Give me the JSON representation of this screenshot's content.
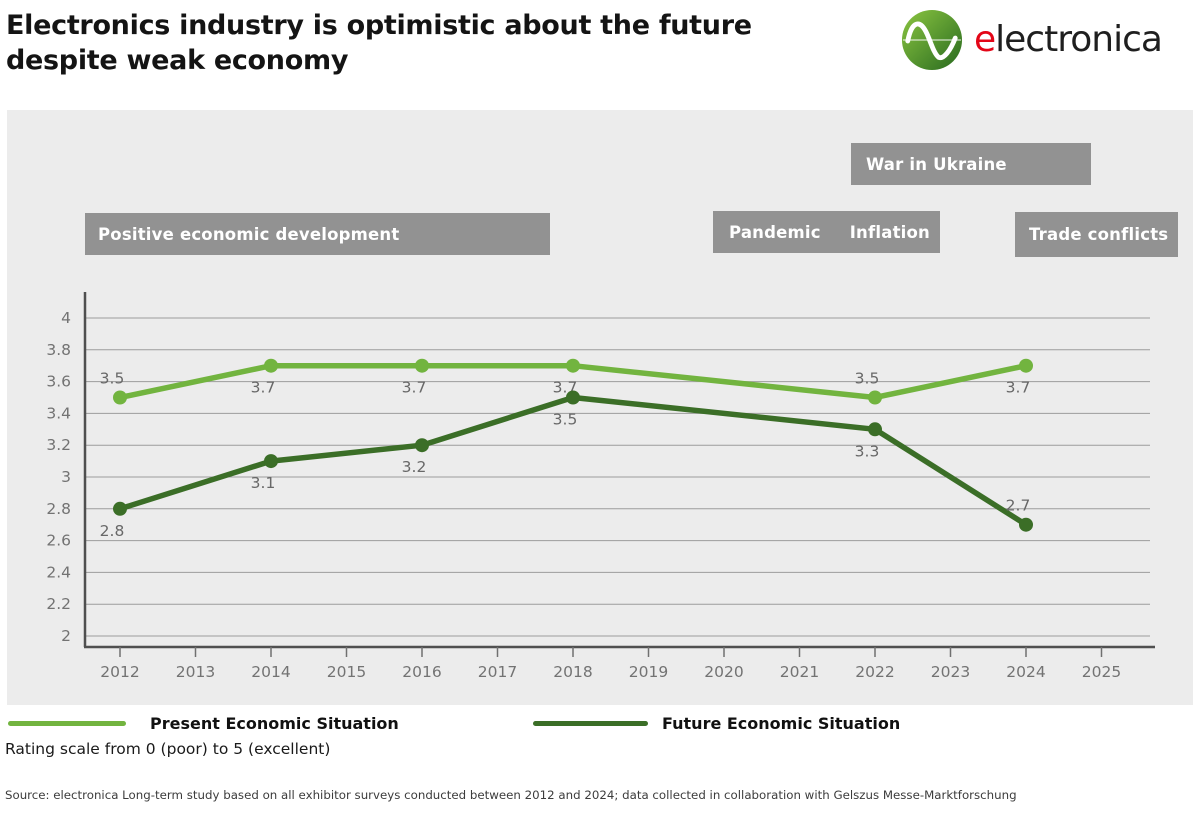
{
  "header": {
    "title_line1": "Electronics industry is optimistic about the future",
    "title_line2": "despite weak economy",
    "logo": {
      "first_letter": "e",
      "rest": "lectronica"
    }
  },
  "annotations": {
    "positive": "Positive economic development",
    "war": "War in Ukraine",
    "pandemic": "Pandemic",
    "inflation": "Inflation",
    "trade": "Trade conflicts"
  },
  "chart_data": {
    "type": "line",
    "x_ticks": [
      2012,
      2013,
      2014,
      2015,
      2016,
      2017,
      2018,
      2019,
      2020,
      2021,
      2022,
      2023,
      2024,
      2025
    ],
    "ylim": [
      2,
      4
    ],
    "y_ticks": [
      "4",
      "3.8",
      "3.6",
      "3.4",
      "3.2",
      "3",
      "2.8",
      "2.6",
      "2.4",
      "2.2",
      "2"
    ],
    "grid": true,
    "legend_position": "bottom",
    "series": [
      {
        "name": "Present Economic Situation",
        "color": "#72b43f",
        "points": [
          {
            "x": 2012,
            "y": 3.5,
            "label": "3.5",
            "label_pos": "above"
          },
          {
            "x": 2014,
            "y": 3.7,
            "label": "3.7",
            "label_pos": "below"
          },
          {
            "x": 2016,
            "y": 3.7,
            "label": "3.7",
            "label_pos": "below"
          },
          {
            "x": 2018,
            "y": 3.7,
            "label": "3.7",
            "label_pos": "below"
          },
          {
            "x": 2022,
            "y": 3.5,
            "label": "3.5",
            "label_pos": "above"
          },
          {
            "x": 2024,
            "y": 3.7,
            "label": "3.7",
            "label_pos": "below"
          }
        ]
      },
      {
        "name": "Future Economic Situation",
        "color": "#3b6e27",
        "points": [
          {
            "x": 2012,
            "y": 2.8,
            "label": "2.8",
            "label_pos": "below"
          },
          {
            "x": 2014,
            "y": 3.1,
            "label": "3.1",
            "label_pos": "below"
          },
          {
            "x": 2016,
            "y": 3.2,
            "label": "3.2",
            "label_pos": "below"
          },
          {
            "x": 2018,
            "y": 3.5,
            "label": "3.5",
            "label_pos": "below"
          },
          {
            "x": 2022,
            "y": 3.3,
            "label": "3.3",
            "label_pos": "below"
          },
          {
            "x": 2024,
            "y": 2.7,
            "label": "2.7",
            "label_pos": "above"
          }
        ]
      }
    ]
  },
  "legend": {
    "present": "Present Economic Situation",
    "future": "Future Economic Situation",
    "rating_note": "Rating scale from 0 (poor) to 5 (excellent)"
  },
  "footer": {
    "source": "Source: electronica Long-term study based on all exhibitor surveys conducted between 2012 and 2024; data collected in collaboration with Gelszus Messe-Marktforschung"
  },
  "colors": {
    "present": "#72b43f",
    "future": "#3b6e27",
    "panel": "#ececec",
    "annotation_box": "#929292",
    "red_accent": "#e30617",
    "grid_line": "#9c9c9c",
    "axis_line": "#4f4f4f",
    "tick_text": "#737373",
    "value_text": "#686868"
  }
}
